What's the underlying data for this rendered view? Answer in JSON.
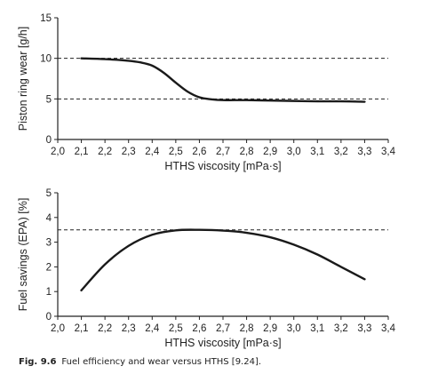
{
  "chart_data": [
    {
      "type": "line",
      "xlabel": "HTHS viscosity [mPa·s]",
      "ylabel": "Piston ring wear [g/h]",
      "xlim": [
        2.0,
        3.4
      ],
      "ylim": [
        0,
        15
      ],
      "x_ticks": [
        "2,0",
        "2,1",
        "2,2",
        "2,3",
        "2,4",
        "2,5",
        "2,6",
        "2,7",
        "2,8",
        "2,9",
        "3,0",
        "3,1",
        "3,2",
        "3,3",
        "3,4"
      ],
      "y_ticks": [
        "0",
        "5",
        "10",
        "15"
      ],
      "reference_lines_y": [
        10,
        5
      ],
      "series": [
        {
          "x": [
            2.1,
            2.2,
            2.3,
            2.35,
            2.4,
            2.45,
            2.5,
            2.55,
            2.6,
            2.65,
            2.7,
            2.8,
            2.9,
            3.0,
            3.1,
            3.2,
            3.3
          ],
          "values": [
            10.0,
            9.9,
            9.7,
            9.5,
            9.1,
            8.2,
            7.0,
            5.9,
            5.2,
            4.95,
            4.85,
            4.85,
            4.8,
            4.75,
            4.7,
            4.7,
            4.65
          ]
        }
      ]
    },
    {
      "type": "line",
      "xlabel": "HTHS viscosity [mPa·s]",
      "ylabel": "Fuel savings (EPA) [%]",
      "xlim": [
        2.0,
        3.4
      ],
      "ylim": [
        0,
        5
      ],
      "x_ticks": [
        "2,0",
        "2,1",
        "2,2",
        "2,3",
        "2,4",
        "2,5",
        "2,6",
        "2,7",
        "2,8",
        "2,9",
        "3,0",
        "3,1",
        "3,2",
        "3,3",
        "3,4"
      ],
      "y_ticks": [
        "0",
        "1",
        "2",
        "3",
        "4",
        "5"
      ],
      "reference_lines_y": [
        3.5
      ],
      "series": [
        {
          "x": [
            2.1,
            2.2,
            2.3,
            2.4,
            2.5,
            2.6,
            2.7,
            2.8,
            2.9,
            3.0,
            3.1,
            3.2,
            3.3
          ],
          "values": [
            1.05,
            2.1,
            2.85,
            3.3,
            3.48,
            3.5,
            3.47,
            3.38,
            3.2,
            2.9,
            2.5,
            2.0,
            1.5
          ]
        }
      ]
    }
  ],
  "caption": {
    "label": "Fig. 9.6",
    "text": "Fuel efficiency and wear versus HTHS [9.24]."
  }
}
